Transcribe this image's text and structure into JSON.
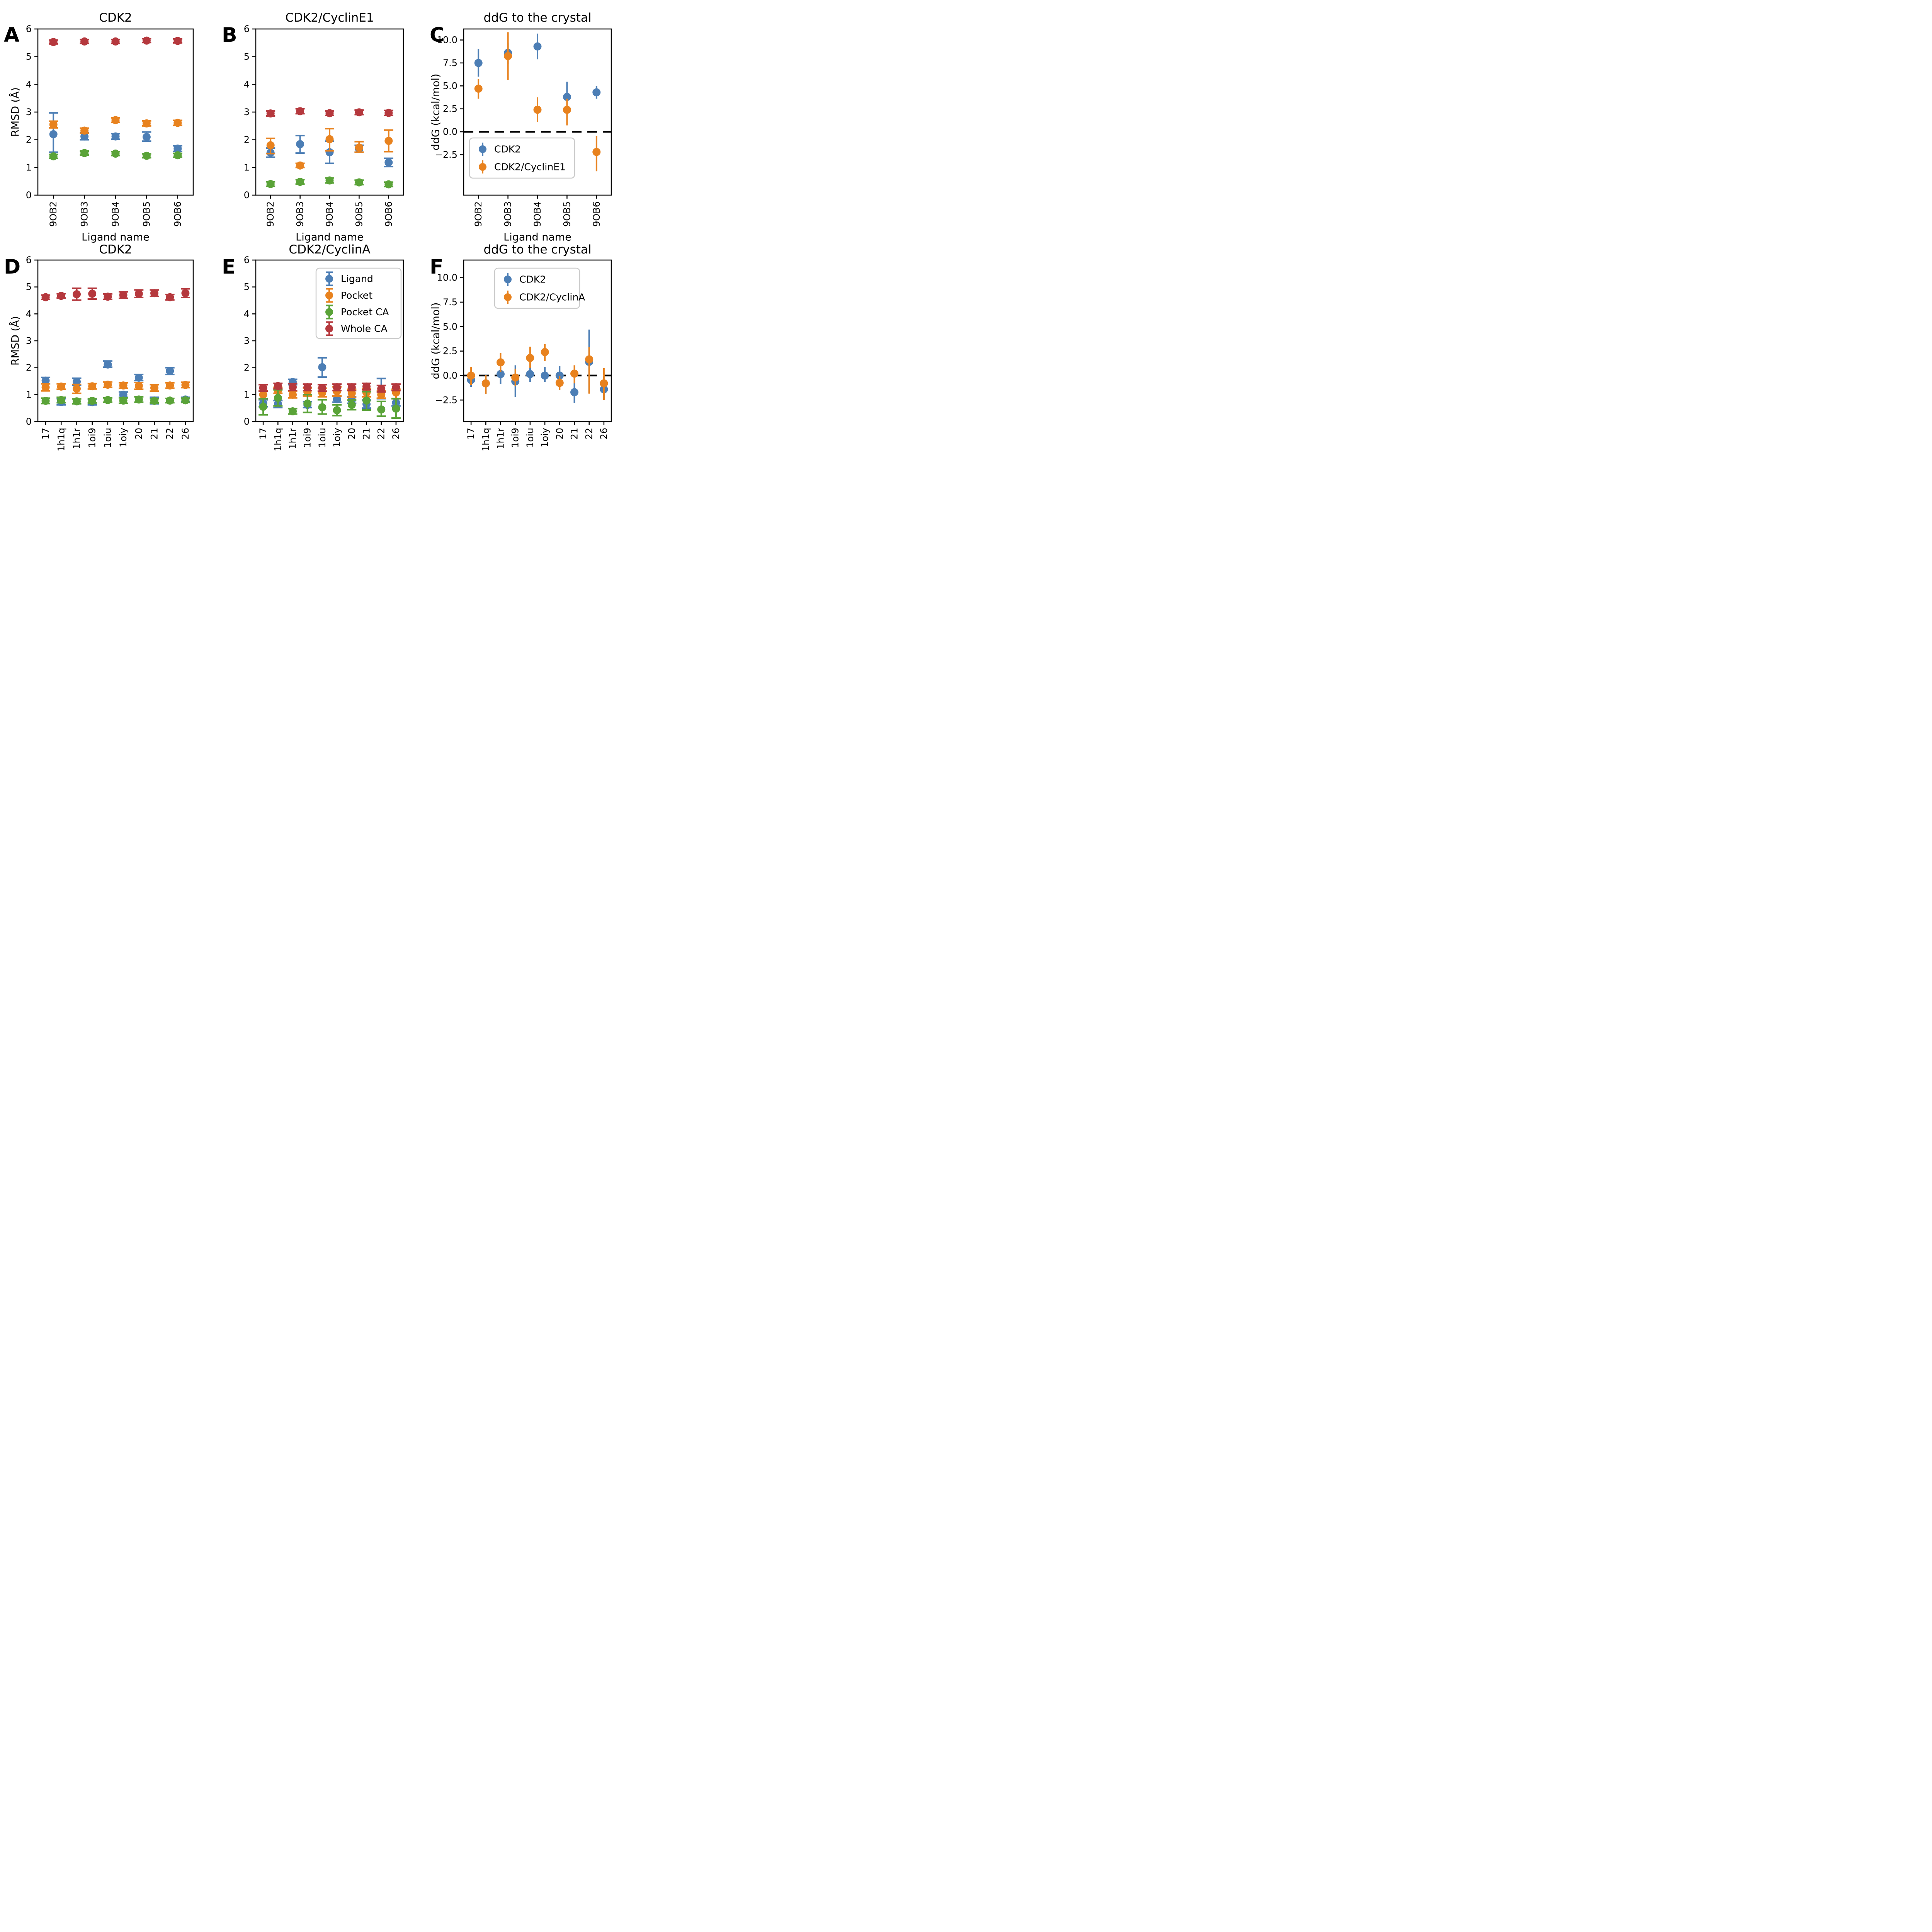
{
  "figure": {
    "background": "#ffffff",
    "palette": {
      "blue": "#4C7EB5",
      "orange": "#E8821E",
      "green": "#5AA338",
      "red": "#B5383D",
      "zero_line": "#000000",
      "legend_edge": "#cccccc"
    }
  },
  "chart_data": [
    {
      "panel_label": "A",
      "type": "scatter-errorbar",
      "title": "CDK2",
      "ylabel": "RMSD (Å)",
      "xlabel": "Ligand name",
      "ylim": [
        0,
        6
      ],
      "ytick_vals": [
        0,
        1,
        2,
        3,
        4,
        5,
        6
      ],
      "yticks": [
        "0",
        "1",
        "2",
        "3",
        "4",
        "5",
        "6"
      ],
      "categories": [
        "9OB2",
        "9OB3",
        "9OB4",
        "9OB5",
        "9OB6"
      ],
      "capsize": true,
      "zero_line": false,
      "legend": null,
      "series": [
        {
          "name": "Ligand",
          "color": "#4C7EB5",
          "values": [
            2.2,
            2.12,
            2.12,
            2.1,
            1.68
          ],
          "err_lo": [
            0.65,
            0.12,
            0.1,
            0.15,
            0.1
          ],
          "err_hi": [
            0.77,
            0.13,
            0.1,
            0.18,
            0.1
          ]
        },
        {
          "name": "Pocket",
          "color": "#E8821E",
          "values": [
            2.55,
            2.33,
            2.71,
            2.59,
            2.61
          ],
          "err_lo": [
            0.12,
            0.09,
            0.08,
            0.09,
            0.09
          ],
          "err_hi": [
            0.12,
            0.09,
            0.08,
            0.09,
            0.09
          ]
        },
        {
          "name": "Pocket CA",
          "color": "#5AA338",
          "values": [
            1.4,
            1.52,
            1.5,
            1.42,
            1.44
          ],
          "err_lo": [
            0.07,
            0.07,
            0.07,
            0.07,
            0.07
          ],
          "err_hi": [
            0.07,
            0.07,
            0.07,
            0.07,
            0.07
          ]
        },
        {
          "name": "Whole CA",
          "color": "#B5383D",
          "values": [
            5.53,
            5.55,
            5.55,
            5.58,
            5.57
          ],
          "err_lo": [
            0.07,
            0.07,
            0.07,
            0.07,
            0.07
          ],
          "err_hi": [
            0.07,
            0.07,
            0.07,
            0.07,
            0.07
          ]
        }
      ]
    },
    {
      "panel_label": "B",
      "type": "scatter-errorbar",
      "title": "CDK2/CyclinE1",
      "ylabel": null,
      "xlabel": "Ligand name",
      "ylim": [
        0,
        6
      ],
      "ytick_vals": [
        0,
        1,
        2,
        3,
        4,
        5,
        6
      ],
      "yticks": [
        "0",
        "1",
        "2",
        "3",
        "4",
        "5",
        "6"
      ],
      "categories": [
        "9OB2",
        "9OB3",
        "9OB4",
        "9OB5",
        "9OB6"
      ],
      "capsize": true,
      "zero_line": false,
      "legend": null,
      "series": [
        {
          "name": "Ligand",
          "color": "#4C7EB5",
          "values": [
            1.53,
            1.84,
            1.55,
            1.67,
            1.18
          ],
          "err_lo": [
            0.16,
            0.32,
            0.4,
            0.12,
            0.15
          ],
          "err_hi": [
            0.17,
            0.31,
            0.4,
            0.13,
            0.15
          ]
        },
        {
          "name": "Pocket",
          "color": "#E8821E",
          "values": [
            1.8,
            1.07,
            2.02,
            1.72,
            1.96
          ],
          "err_lo": [
            0.3,
            0.07,
            0.42,
            0.17,
            0.39
          ],
          "err_hi": [
            0.25,
            0.08,
            0.38,
            0.21,
            0.39
          ]
        },
        {
          "name": "Pocket CA",
          "color": "#5AA338",
          "values": [
            0.4,
            0.48,
            0.53,
            0.46,
            0.39
          ],
          "err_lo": [
            0.08,
            0.08,
            0.09,
            0.08,
            0.08
          ],
          "err_hi": [
            0.08,
            0.08,
            0.09,
            0.08,
            0.08
          ]
        },
        {
          "name": "Whole CA",
          "color": "#B5383D",
          "values": [
            2.95,
            3.03,
            2.96,
            2.99,
            2.97
          ],
          "err_lo": [
            0.09,
            0.09,
            0.08,
            0.08,
            0.09
          ],
          "err_hi": [
            0.09,
            0.09,
            0.08,
            0.08,
            0.09
          ]
        }
      ]
    },
    {
      "panel_label": "C",
      "type": "scatter-errorbar",
      "title": "ddG to the crystal",
      "ylabel": "ddG (kcal/mol)",
      "xlabel": "Ligand name",
      "ylim": [
        -6.9,
        11.2
      ],
      "ytick_vals": [
        -2.5,
        0.0,
        2.5,
        5.0,
        7.5,
        10.0
      ],
      "yticks": [
        "−2.5",
        "0.0",
        "2.5",
        "5.0",
        "7.5",
        "10.0"
      ],
      "categories": [
        "9OB2",
        "9OB3",
        "9OB4",
        "9OB5",
        "9OB6"
      ],
      "capsize": false,
      "zero_line": true,
      "legend": {
        "items": [
          {
            "label": "CDK2",
            "color": "#4C7EB5"
          },
          {
            "label": "CDK2/CyclinE1",
            "color": "#E8821E"
          }
        ]
      },
      "series": [
        {
          "name": "CDK2",
          "color": "#4C7EB5",
          "values": [
            7.5,
            8.6,
            9.3,
            3.8,
            4.3
          ],
          "err_lo": [
            1.5,
            1.2,
            1.4,
            0.5,
            0.7
          ],
          "err_hi": [
            1.55,
            1.1,
            1.4,
            1.65,
            0.7
          ]
        },
        {
          "name": "CDK2/CyclinE1",
          "color": "#E8821E",
          "values": [
            4.7,
            8.25,
            2.4,
            2.4,
            -2.2
          ],
          "err_lo": [
            1.1,
            2.6,
            1.35,
            1.7,
            2.1
          ],
          "err_hi": [
            1.05,
            2.6,
            1.35,
            1.2,
            1.75
          ]
        }
      ]
    },
    {
      "panel_label": "D",
      "type": "scatter-errorbar",
      "title": "CDK2",
      "ylabel": "RMSD (Å)",
      "xlabel": null,
      "ylim": [
        0,
        6
      ],
      "ytick_vals": [
        0,
        1,
        2,
        3,
        4,
        5,
        6
      ],
      "yticks": [
        "0",
        "1",
        "2",
        "3",
        "4",
        "5",
        "6"
      ],
      "categories": [
        "17",
        "1h1q",
        "1h1r",
        "1oi9",
        "1oiu",
        "1oiy",
        "20",
        "21",
        "22",
        "26"
      ],
      "capsize": true,
      "zero_line": false,
      "legend": null,
      "series": [
        {
          "name": "Ligand",
          "color": "#4C7EB5",
          "values": [
            1.52,
            0.73,
            1.48,
            0.72,
            2.12,
            1.0,
            1.63,
            0.78,
            1.88,
            0.82
          ],
          "err_lo": [
            0.12,
            0.11,
            0.13,
            0.1,
            0.1,
            0.1,
            0.11,
            0.12,
            0.13,
            0.08
          ],
          "err_hi": [
            0.12,
            0.12,
            0.13,
            0.1,
            0.13,
            0.1,
            0.12,
            0.12,
            0.12,
            0.08
          ]
        },
        {
          "name": "Pocket",
          "color": "#E8821E",
          "values": [
            1.27,
            1.3,
            1.22,
            1.31,
            1.37,
            1.34,
            1.33,
            1.25,
            1.34,
            1.36
          ],
          "err_lo": [
            0.13,
            0.1,
            0.17,
            0.1,
            0.1,
            0.1,
            0.13,
            0.12,
            0.1,
            0.1
          ],
          "err_hi": [
            0.13,
            0.1,
            0.16,
            0.1,
            0.1,
            0.1,
            0.12,
            0.12,
            0.1,
            0.1
          ]
        },
        {
          "name": "Pocket CA",
          "color": "#5AA338",
          "values": [
            0.77,
            0.8,
            0.75,
            0.77,
            0.8,
            0.78,
            0.82,
            0.77,
            0.78,
            0.79
          ],
          "err_lo": [
            0.1,
            0.1,
            0.09,
            0.08,
            0.08,
            0.1,
            0.1,
            0.08,
            0.08,
            0.08
          ],
          "err_hi": [
            0.1,
            0.1,
            0.09,
            0.08,
            0.08,
            0.1,
            0.1,
            0.08,
            0.08,
            0.08
          ]
        },
        {
          "name": "Whole CA",
          "color": "#B5383D",
          "values": [
            4.62,
            4.67,
            4.73,
            4.75,
            4.64,
            4.7,
            4.75,
            4.77,
            4.62,
            4.77
          ],
          "err_lo": [
            0.08,
            0.08,
            0.22,
            0.2,
            0.1,
            0.12,
            0.14,
            0.12,
            0.1,
            0.16
          ],
          "err_hi": [
            0.08,
            0.08,
            0.22,
            0.2,
            0.1,
            0.12,
            0.14,
            0.12,
            0.1,
            0.16
          ]
        }
      ]
    },
    {
      "panel_label": "E",
      "type": "scatter-errorbar",
      "title": "CDK2/CyclinA",
      "ylabel": null,
      "xlabel": null,
      "ylim": [
        0,
        6
      ],
      "ytick_vals": [
        0,
        1,
        2,
        3,
        4,
        5,
        6
      ],
      "yticks": [
        "0",
        "1",
        "2",
        "3",
        "4",
        "5",
        "6"
      ],
      "categories": [
        "17",
        "1h1q",
        "1h1r",
        "1oi9",
        "1oiu",
        "1oiy",
        "20",
        "21",
        "22",
        "26"
      ],
      "capsize": true,
      "zero_line": false,
      "legend": {
        "items": [
          {
            "label": "Ligand",
            "color": "#4C7EB5"
          },
          {
            "label": "Pocket",
            "color": "#E8821E"
          },
          {
            "label": "Pocket CA",
            "color": "#5AA338"
          },
          {
            "label": "Whole CA",
            "color": "#B5383D"
          }
        ]
      },
      "series": [
        {
          "name": "Ligand",
          "color": "#4C7EB5",
          "values": [
            0.68,
            0.65,
            1.47,
            0.62,
            2.02,
            0.83,
            0.8,
            0.65,
            1.12,
            0.7
          ],
          "err_lo": [
            0.13,
            0.13,
            0.1,
            0.1,
            0.37,
            0.11,
            0.12,
            0.15,
            0.27,
            0.12
          ],
          "err_hi": [
            0.13,
            0.13,
            0.1,
            0.12,
            0.35,
            0.12,
            0.13,
            0.15,
            0.48,
            0.15
          ]
        },
        {
          "name": "Pocket",
          "color": "#E8821E",
          "values": [
            1.0,
            1.15,
            1.0,
            1.1,
            1.07,
            1.12,
            1.05,
            1.07,
            1.0,
            1.08
          ],
          "err_lo": [
            0.15,
            0.1,
            0.12,
            0.15,
            0.15,
            0.17,
            0.15,
            0.15,
            0.13,
            0.23
          ],
          "err_hi": [
            0.15,
            0.12,
            0.12,
            0.15,
            0.17,
            0.17,
            0.15,
            0.15,
            0.15,
            0.12
          ]
        },
        {
          "name": "Pocket CA",
          "color": "#5AA338",
          "values": [
            0.55,
            0.88,
            0.38,
            0.67,
            0.53,
            0.42,
            0.62,
            0.78,
            0.45,
            0.48
          ],
          "err_lo": [
            0.3,
            0.3,
            0.1,
            0.33,
            0.25,
            0.2,
            0.18,
            0.35,
            0.25,
            0.35
          ],
          "err_hi": [
            0.3,
            0.3,
            0.1,
            0.33,
            0.28,
            0.2,
            0.18,
            0.33,
            0.3,
            0.37
          ]
        },
        {
          "name": "Whole CA",
          "color": "#B5383D",
          "values": [
            1.25,
            1.32,
            1.28,
            1.27,
            1.25,
            1.27,
            1.27,
            1.3,
            1.22,
            1.27
          ],
          "err_lo": [
            0.12,
            0.1,
            0.13,
            0.12,
            0.12,
            0.12,
            0.12,
            0.12,
            0.12,
            0.12
          ],
          "err_hi": [
            0.12,
            0.1,
            0.13,
            0.12,
            0.12,
            0.12,
            0.12,
            0.12,
            0.12,
            0.12
          ]
        }
      ]
    },
    {
      "panel_label": "F",
      "type": "scatter-errorbar",
      "title": "ddG to the crystal",
      "ylabel": "ddG (kcal/mol)",
      "xlabel": null,
      "ylim": [
        -4.7,
        11.8
      ],
      "ytick_vals": [
        -2.5,
        0.0,
        2.5,
        5.0,
        7.5,
        10.0
      ],
      "yticks": [
        "−2.5",
        "0.0",
        "2.5",
        "5.0",
        "7.5",
        "10.0"
      ],
      "categories": [
        "17",
        "1h1q",
        "1h1r",
        "1oi9",
        "1oiu",
        "1oiy",
        "20",
        "21",
        "22",
        "26"
      ],
      "capsize": false,
      "zero_line": true,
      "legend": {
        "items": [
          {
            "label": "CDK2",
            "color": "#4C7EB5"
          },
          {
            "label": "CDK2/CyclinA",
            "color": "#E8821E"
          }
        ]
      },
      "series": [
        {
          "name": "CDK2",
          "color": "#4C7EB5",
          "values": [
            -0.45,
            -0.8,
            0.15,
            -0.6,
            0.15,
            0.0,
            0.0,
            -1.7,
            1.4,
            -1.4
          ],
          "err_lo": [
            0.7,
            1.05,
            1.0,
            1.6,
            0.8,
            0.65,
            0.6,
            1.1,
            3.2,
            1.05
          ],
          "err_hi": [
            0.6,
            0.9,
            0.85,
            1.65,
            0.75,
            0.9,
            0.95,
            1.25,
            3.3,
            0.55
          ]
        },
        {
          "name": "CDK2/CyclinA",
          "color": "#E8821E",
          "values": [
            0.0,
            -0.8,
            1.35,
            -0.2,
            1.8,
            2.4,
            -0.75,
            0.2,
            1.65,
            -0.8
          ],
          "err_lo": [
            0.95,
            1.1,
            1.0,
            0.9,
            1.05,
            0.9,
            0.75,
            1.0,
            3.5,
            1.7
          ],
          "err_hi": [
            0.9,
            0.85,
            0.95,
            0.9,
            1.15,
            0.8,
            0.7,
            0.85,
            1.25,
            1.55
          ]
        }
      ]
    }
  ]
}
